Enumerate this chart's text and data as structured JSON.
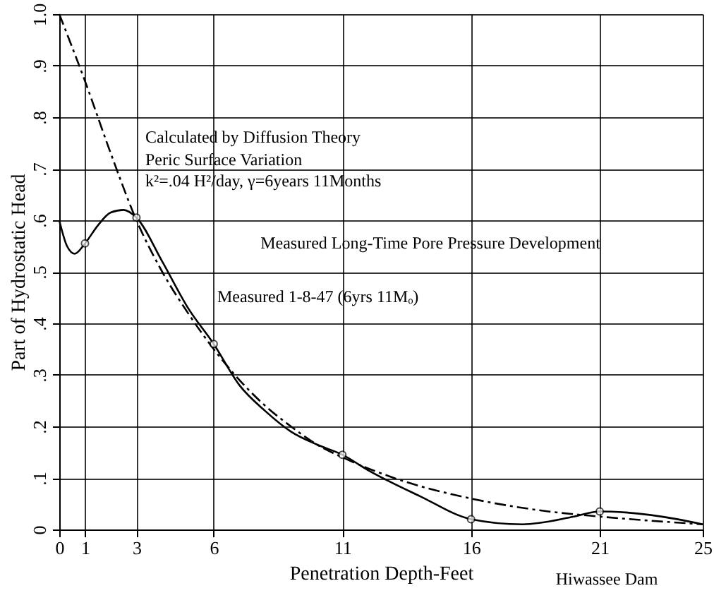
{
  "chart_data": {
    "type": "line",
    "xlabel": "Penetration Depth-Feet",
    "ylabel": "Part of Hydrostatic Head",
    "xlim": [
      0,
      25
    ],
    "xticks": [
      0,
      1,
      3,
      6,
      11,
      16,
      21,
      25
    ],
    "ylim": [
      0,
      1.0
    ],
    "yticks": [
      {
        "value": 0,
        "label": "0"
      },
      {
        "value": 0.1,
        "label": ".1"
      },
      {
        "value": 0.2,
        "label": ".2"
      },
      {
        "value": 0.3,
        "label": ".3"
      },
      {
        "value": 0.4,
        "label": ".4"
      },
      {
        "value": 0.5,
        "label": ".5"
      },
      {
        "value": 0.6,
        "label": ".6"
      },
      {
        "value": 0.7,
        "label": ".7"
      },
      {
        "value": 0.8,
        "label": ".8"
      },
      {
        "value": 0.9,
        "label": ".9"
      },
      {
        "value": 1.0,
        "label": "1.0"
      }
    ],
    "grid": true,
    "series": [
      {
        "color": "#000000",
        "line_style": "dashed",
        "marker": "none",
        "x": [
          0,
          1,
          2,
          3,
          4,
          5,
          6,
          7,
          8,
          9,
          10,
          11,
          13,
          16,
          19,
          21,
          25
        ],
        "values": [
          1.0,
          0.87,
          0.73,
          0.6,
          0.5,
          0.42,
          0.35,
          0.29,
          0.24,
          0.2,
          0.165,
          0.14,
          0.1,
          0.06,
          0.035,
          0.025,
          0.01
        ]
      },
      {
        "color": "#000000",
        "line_style": "solid",
        "marker": "none",
        "x": [
          0,
          0.3,
          0.6,
          1,
          1.5,
          2,
          2.5,
          3,
          4,
          5,
          6,
          7,
          8,
          9,
          10,
          11,
          12,
          14,
          16,
          18,
          20,
          21,
          22,
          24,
          25
        ],
        "values": [
          0.6,
          0.55,
          0.535,
          0.555,
          0.59,
          0.615,
          0.62,
          0.605,
          0.52,
          0.43,
          0.36,
          0.28,
          0.23,
          0.19,
          0.165,
          0.145,
          0.115,
          0.065,
          0.02,
          0.01,
          0.025,
          0.035,
          0.033,
          0.02,
          0.01
        ]
      },
      {
        "type": "scatter",
        "color": "#000000",
        "marker": "circle",
        "x": [
          1,
          3,
          6,
          11,
          16,
          21
        ],
        "values": [
          0.555,
          0.605,
          0.36,
          0.145,
          0.02,
          0.035
        ]
      }
    ],
    "annotations": [
      "Calculated by Diffusion Theory",
      "Peric Surface Variation",
      "k²=.04 H²/day, γ=6years 11Months",
      "Measured Long-Time Pore Pressure Development",
      "Measured 1-8-47 (6yrs 11Mₒ)",
      "Hiwassee Dam"
    ]
  }
}
